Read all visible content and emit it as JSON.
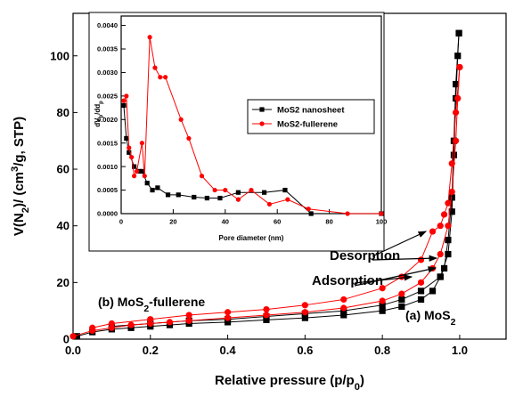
{
  "chart_data": [
    {
      "type": "line",
      "xlabel": [
        {
          "text": "Relative pressure (p/p"
        },
        {
          "text": "0",
          "sub": true
        },
        {
          "text": ")"
        }
      ],
      "ylabel": [
        {
          "text": "V(N"
        },
        {
          "text": "2",
          "sub": true
        },
        {
          "text": ")/ (cm"
        },
        {
          "text": "3",
          "sup": true
        },
        {
          "text": "/g, STP)"
        }
      ],
      "xlim": [
        0,
        1.12
      ],
      "ylim": [
        0,
        115
      ],
      "xticks": [
        {
          "value": 0,
          "label": "0.0"
        },
        0.2,
        0.4,
        0.6,
        0.8,
        {
          "value": 1,
          "label": "1.0"
        }
      ],
      "yticks": [
        0,
        20,
        40,
        60,
        80,
        100
      ],
      "annotations": [
        [
          {
            "text": "Desorption"
          }
        ],
        [
          {
            "text": "Adsorption"
          }
        ],
        [
          {
            "text": "(b) MoS"
          },
          {
            "text": "2",
            "sub": true
          },
          {
            "text": "-fullerene"
          }
        ],
        [
          {
            "text": "(a) MoS"
          },
          {
            "text": "2",
            "sub": true
          }
        ]
      ],
      "series": [
        {
          "color": "#000000",
          "marker": "square",
          "x": [
            0.01,
            0.05,
            0.1,
            0.15,
            0.2,
            0.25,
            0.3,
            0.4,
            0.5,
            0.6,
            0.7,
            0.8,
            0.85,
            0.9,
            0.93,
            0.95,
            0.97,
            0.98,
            0.985,
            0.99,
            0.995,
            0.998
          ],
          "values": [
            1,
            2.5,
            3.5,
            4,
            4.5,
            5,
            5.5,
            6,
            6.8,
            7.5,
            8.5,
            10,
            11.5,
            14,
            17,
            22,
            30,
            45,
            65,
            85,
            100,
            108
          ]
        },
        {
          "color": "#000000",
          "marker": "square",
          "x": [
            0.998,
            0.99,
            0.985,
            0.98,
            0.97,
            0.96,
            0.95,
            0.9,
            0.85,
            0.8,
            0.7,
            0.6,
            0.5,
            0.4,
            0.3,
            0.2,
            0.1
          ],
          "values": [
            108,
            90,
            70,
            50,
            35,
            25,
            22,
            17,
            14,
            12,
            10,
            9,
            8,
            7,
            6.5,
            5.5,
            4.5
          ]
        },
        {
          "color": "#ff0000",
          "marker": "circle",
          "x": [
            0,
            0.05,
            0.1,
            0.15,
            0.2,
            0.25,
            0.3,
            0.4,
            0.5,
            0.6,
            0.7,
            0.8,
            0.85,
            0.9,
            0.93,
            0.95,
            0.97,
            0.98,
            0.99,
            0.995,
            1
          ],
          "values": [
            1,
            3,
            4,
            5,
            5.5,
            6,
            6.5,
            7.5,
            8.5,
            9.5,
            11,
            13.5,
            16,
            20,
            25,
            30,
            40,
            52,
            70,
            85,
            96
          ]
        },
        {
          "color": "#ff0000",
          "marker": "circle",
          "x": [
            1,
            0.99,
            0.98,
            0.97,
            0.96,
            0.95,
            0.93,
            0.9,
            0.85,
            0.8,
            0.7,
            0.6,
            0.5,
            0.4,
            0.3,
            0.2,
            0.1,
            0.05
          ],
          "values": [
            96,
            80,
            62,
            48,
            44,
            40,
            38,
            28,
            22,
            18,
            14,
            12,
            10.5,
            9.5,
            8.5,
            7,
            5.5,
            4
          ]
        }
      ]
    },
    {
      "type": "line",
      "xlabel": [
        {
          "text": "Pore diameter (nm)"
        }
      ],
      "ylabel": [
        {
          "text": "dV"
        },
        {
          "text": "p",
          "sub": true
        },
        {
          "text": "/dd"
        },
        {
          "text": "p",
          "sub": true
        }
      ],
      "xlim": [
        0,
        100
      ],
      "ylim": [
        0,
        0.0042
      ],
      "xticks": [
        0,
        20,
        40,
        60,
        80,
        100
      ],
      "yticks": [
        {
          "value": 0,
          "label": "0.0000"
        },
        {
          "value": 0.0005,
          "label": "0.0005"
        },
        {
          "value": 0.001,
          "label": "0.0010"
        },
        {
          "value": 0.0015,
          "label": "0.0015"
        },
        {
          "value": 0.002,
          "label": "0.0020"
        },
        {
          "value": 0.0025,
          "label": "0.0025"
        },
        {
          "value": 0.003,
          "label": "0.0030"
        },
        {
          "value": 0.0035,
          "label": "0.0035"
        },
        {
          "value": 0.004,
          "label": "0.0040"
        }
      ],
      "legend": "center right",
      "series": [
        {
          "name": "MoS2 nanosheet",
          "color": "#000000",
          "marker": "square",
          "x": [
            1,
            2,
            3,
            5,
            7,
            8,
            10,
            12,
            14,
            18,
            22,
            28,
            33,
            38,
            45,
            55,
            63,
            73,
            100
          ],
          "values": [
            0.0023,
            0.0016,
            0.0013,
            0.001,
            0.0009,
            0.0009,
            0.00065,
            0.0005,
            0.00055,
            0.0004,
            0.0004,
            0.00035,
            0.00033,
            0.00033,
            0.00045,
            0.00045,
            0.0005,
            0,
            0
          ]
        },
        {
          "name": "MoS2-fullerene",
          "color": "#ff0000",
          "marker": "circle",
          "x": [
            1,
            2,
            3,
            4,
            5,
            6,
            8,
            9,
            11,
            13,
            15,
            17,
            23,
            26,
            31,
            36,
            40,
            45,
            50,
            57,
            64,
            72,
            87,
            100
          ],
          "values": [
            0.0024,
            0.0025,
            0.0014,
            0.0012,
            0.0008,
            0.0009,
            0.0015,
            0.0008,
            0.00375,
            0.0031,
            0.0029,
            0.0029,
            0.002,
            0.0016,
            0.0008,
            0.0005,
            0.0005,
            0.0003,
            0.0005,
            0.0002,
            0.0003,
            0.0001,
            0,
            0
          ]
        }
      ]
    }
  ]
}
